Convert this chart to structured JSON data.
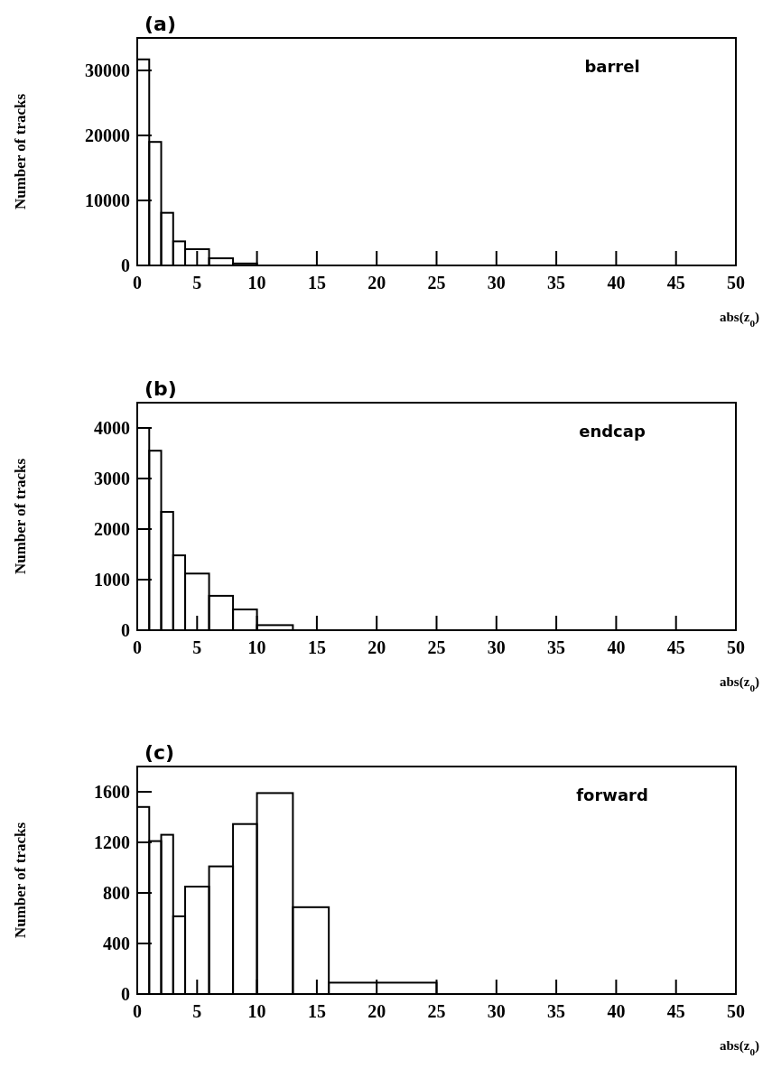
{
  "chart_data": [
    {
      "type": "histogram",
      "title": "(a)",
      "annotations": [
        "barrel"
      ],
      "xlabel": "abs(z$_{0}$)",
      "ylabel": "Number of tracks",
      "color": "#000000",
      "bins": [
        0,
        1,
        2,
        3,
        4,
        6,
        8,
        10
      ],
      "values": [
        31700,
        19000,
        8100,
        3700,
        2500,
        1100,
        300
      ],
      "xlim": [
        0,
        50
      ],
      "ylim": [
        0,
        35000
      ],
      "xticks": [
        0,
        5,
        10,
        15,
        20,
        25,
        30,
        35,
        40,
        45,
        50
      ],
      "yticks": [
        0,
        10000,
        20000,
        30000
      ]
    },
    {
      "type": "histogram",
      "title": "(b)",
      "annotations": [
        "endcap"
      ],
      "xlabel": "abs(z$_{0}$)",
      "ylabel": "Number of tracks",
      "color": "#000000",
      "bins": [
        0,
        1,
        2,
        3,
        4,
        6,
        8,
        10,
        13
      ],
      "values": [
        4000,
        3550,
        2340,
        1480,
        1120,
        680,
        410,
        100
      ],
      "xlim": [
        0,
        50
      ],
      "ylim": [
        0,
        4500
      ],
      "xticks": [
        0,
        5,
        10,
        15,
        20,
        25,
        30,
        35,
        40,
        45,
        50
      ],
      "yticks": [
        0,
        1000,
        2000,
        3000,
        4000
      ]
    },
    {
      "type": "histogram",
      "title": "(c)",
      "annotations": [
        "forward"
      ],
      "xlabel": "abs(z$_{0}$)",
      "ylabel": "Number of tracks",
      "color": "#000000",
      "bins": [
        0,
        1,
        2,
        3,
        4,
        6,
        8,
        10,
        13,
        16,
        25
      ],
      "values": [
        1480,
        1210,
        1260,
        615,
        850,
        1010,
        1345,
        1590,
        687,
        90
      ],
      "xlim": [
        0,
        50
      ],
      "ylim": [
        0,
        1800
      ],
      "xticks": [
        0,
        5,
        10,
        15,
        20,
        25,
        30,
        35,
        40,
        45,
        50
      ],
      "yticks": [
        0,
        400,
        800,
        1200,
        1600
      ]
    }
  ]
}
